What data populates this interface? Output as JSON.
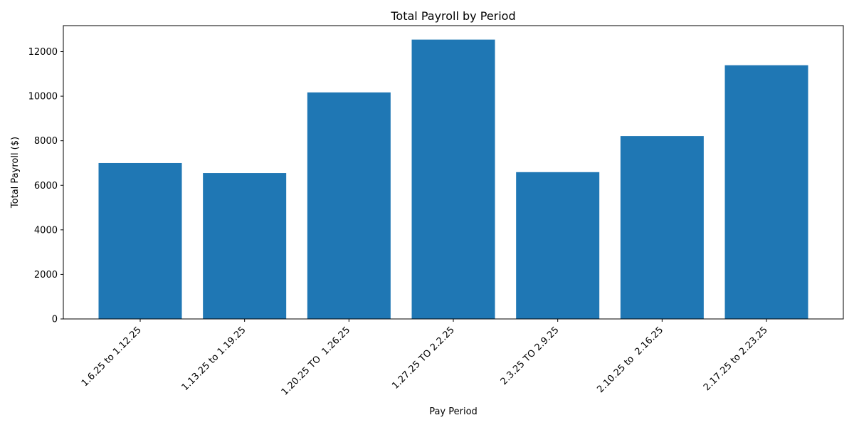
{
  "chart_data": {
    "type": "bar",
    "title": "Total Payroll by Period",
    "xlabel": "Pay Period",
    "ylabel": "Total Payroll ($)",
    "categories": [
      "1.6.25 to 1.12.25",
      "1.13.25 to 1.19.25",
      "1.20.25 TO  1.26.25",
      "1.27.25 TO 2.2.25",
      "2.3.25 TO 2.9.25",
      "2.10.25 to  2.16.25",
      "2.17.25 to 2.23.25"
    ],
    "values": [
      7000,
      6550,
      10170,
      12540,
      6590,
      8210,
      11390
    ],
    "yticks": [
      0,
      2000,
      4000,
      6000,
      8000,
      10000,
      12000
    ],
    "ylim": [
      0,
      13167
    ],
    "grid": false,
    "color": "#1f77b4"
  }
}
